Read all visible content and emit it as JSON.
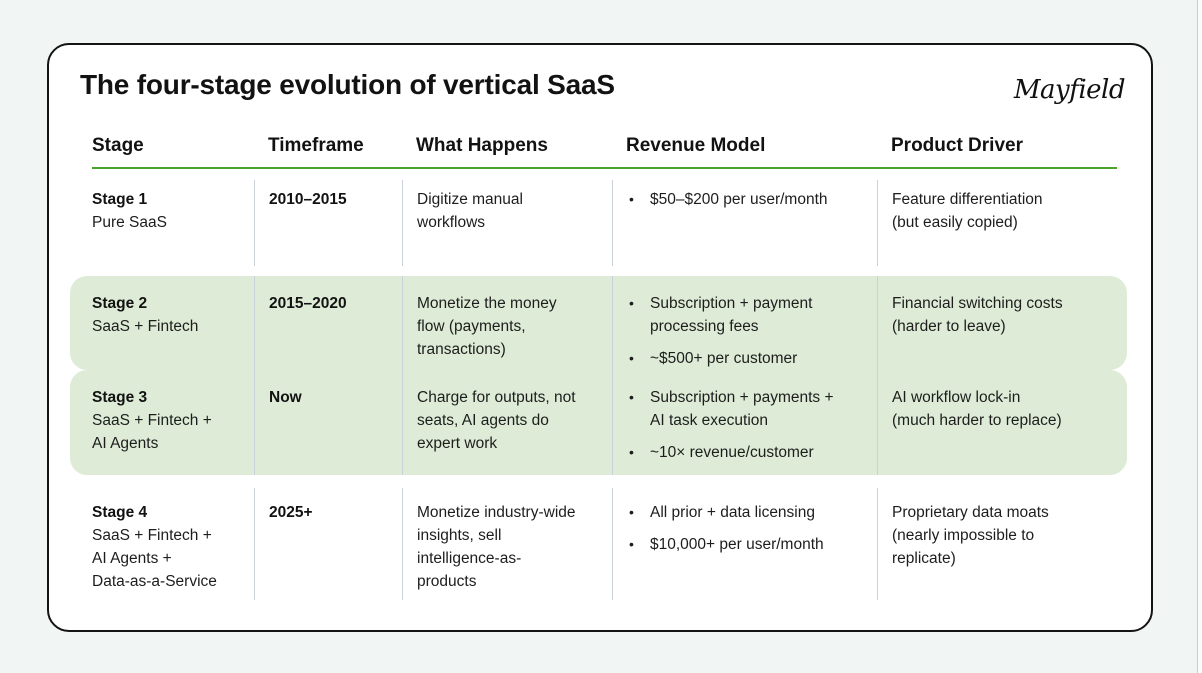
{
  "title": "The four-stage evolution of vertical SaaS",
  "logo_text": "Mayfield",
  "colors": {
    "page_background": "#f1f6f4",
    "card_background": "#ffffff",
    "card_border": "#141414",
    "header_rule_green": "#4aa32c",
    "column_divider": "#c9d1da",
    "highlight_row_background": "#deecd7",
    "text": "#1d1d1d"
  },
  "table": {
    "bullet_char": "•",
    "columns": [
      "Stage",
      "Timeframe",
      "What Happens",
      "Revenue Model",
      "Product Driver"
    ],
    "rows": [
      {
        "stage_title": "Stage 1",
        "stage_subtitle": "Pure SaaS",
        "timeframe": "2010–2015",
        "what_happens": "Digitize manual\nworkflows",
        "revenue_model": [
          "$50–$200 per user/month"
        ],
        "product_driver": "Feature differentiation\n(but easily copied)",
        "highlighted": false
      },
      {
        "stage_title": "Stage 2",
        "stage_subtitle": "SaaS + Fintech",
        "timeframe": "2015–2020",
        "what_happens": "Monetize the money\nflow (payments,\ntransactions)",
        "revenue_model": [
          "Subscription + payment\nprocessing fees",
          "~$500+ per customer"
        ],
        "product_driver": "Financial switching costs\n(harder to leave)",
        "highlighted": true
      },
      {
        "stage_title": "Stage 3",
        "stage_subtitle": "SaaS + Fintech +\nAI Agents",
        "timeframe": "Now",
        "what_happens": "Charge for outputs, not\nseats, AI agents do\nexpert work",
        "revenue_model": [
          "Subscription + payments +\nAI task execution",
          "~10× revenue/customer"
        ],
        "product_driver": "AI workflow lock-in\n(much harder to replace)",
        "highlighted": true
      },
      {
        "stage_title": "Stage 4",
        "stage_subtitle": "SaaS + Fintech +\nAI Agents +\nData-as-a-Service",
        "timeframe": "2025+",
        "what_happens": "Monetize industry-wide\ninsights, sell\nintelligence-as-\nproducts",
        "revenue_model": [
          "All prior + data licensing",
          "$10,000+ per user/month"
        ],
        "product_driver": "Proprietary data moats\n(nearly impossible to\nreplicate)",
        "highlighted": false
      }
    ]
  }
}
